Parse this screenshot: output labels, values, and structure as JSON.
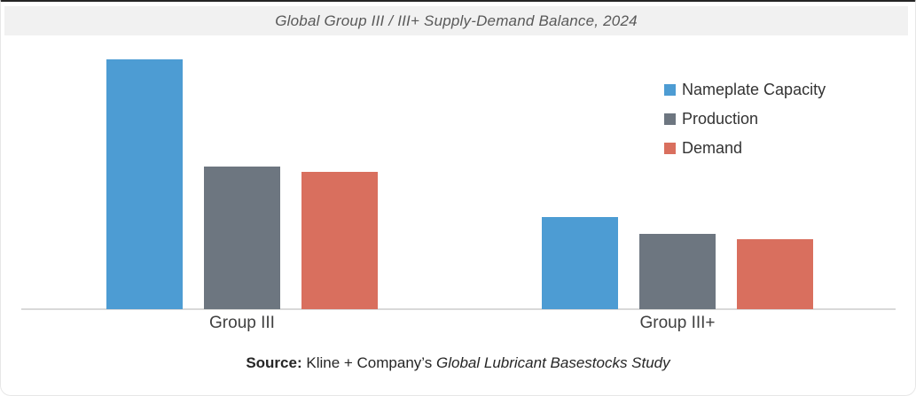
{
  "title": {
    "text": "Global Group III / III+ Supply-Demand Balance, 2024"
  },
  "legend": {
    "items": [
      {
        "label": "Nameplate Capacity",
        "color": "#4d9cd3"
      },
      {
        "label": "Production",
        "color": "#6d7680"
      },
      {
        "label": "Demand",
        "color": "#d96f5e"
      }
    ]
  },
  "chart_data": {
    "type": "bar",
    "title": "Global Group III / III+ Supply-Demand Balance, 2024",
    "categories": [
      "Group III",
      "Group III+"
    ],
    "series": [
      {
        "name": "Nameplate Capacity",
        "color": "#4d9cd3",
        "values": [
          100,
          37
        ]
      },
      {
        "name": "Production",
        "color": "#6d7680",
        "values": [
          57,
          30
        ]
      },
      {
        "name": "Demand",
        "color": "#d96f5e",
        "values": [
          55,
          28
        ]
      }
    ],
    "xlabel": "",
    "ylabel": "",
    "ylim": [
      0,
      110
    ],
    "value_axis_visible": false,
    "gridlines": false,
    "legend_position": "top-right",
    "units": "relative scale; no value axis shown, tallest bar normalized to 100"
  },
  "source": {
    "label": "Source:",
    "text": "Kline + Company’s",
    "publication": "Global Lubricant Basestocks Study"
  }
}
